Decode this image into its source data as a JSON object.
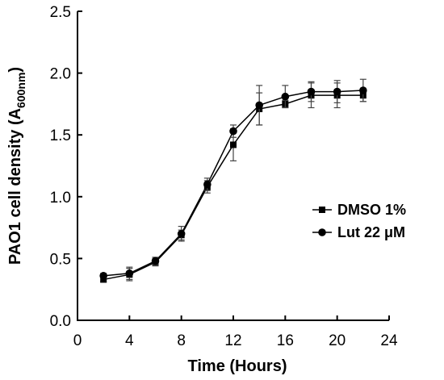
{
  "chart_data": {
    "type": "line",
    "title": "",
    "xlabel": "Time (Hours)",
    "ylabel": {
      "main": "PAO1 cell density (A",
      "sub": "600nm",
      "close": ")"
    },
    "xlim": [
      0,
      24
    ],
    "ylim": [
      0.0,
      2.5
    ],
    "xticks": [
      "0",
      "4",
      "8",
      "12",
      "16",
      "20",
      "24"
    ],
    "xtick_values": [
      0,
      4,
      8,
      12,
      16,
      20,
      24
    ],
    "yticks": [
      "0.0",
      "0.5",
      "1.0",
      "1.5",
      "2.0",
      "2.5"
    ],
    "ytick_values": [
      0.0,
      0.5,
      1.0,
      1.5,
      2.0,
      2.5
    ],
    "grid": false,
    "legend_position": "right",
    "x": [
      2,
      4,
      6,
      8,
      10,
      12,
      14,
      16,
      18,
      20,
      22
    ],
    "series": [
      {
        "name": "DMSO 1%",
        "marker": "square",
        "color": "#000000",
        "values": [
          0.33,
          0.37,
          0.47,
          0.69,
          1.08,
          1.42,
          1.71,
          1.75,
          1.82,
          1.82,
          1.82
        ],
        "errors": [
          0.02,
          0.05,
          0.03,
          0.04,
          0.05,
          0.13,
          0.13,
          0.03,
          0.1,
          0.1,
          0.05
        ]
      },
      {
        "name": "Lut 22 μM",
        "marker": "circle",
        "color": "#000000",
        "values": [
          0.36,
          0.38,
          0.48,
          0.7,
          1.1,
          1.53,
          1.74,
          1.81,
          1.85,
          1.85,
          1.86
        ],
        "errors": [
          0.02,
          0.05,
          0.03,
          0.06,
          0.05,
          0.05,
          0.16,
          0.09,
          0.08,
          0.09,
          0.09
        ]
      }
    ]
  }
}
